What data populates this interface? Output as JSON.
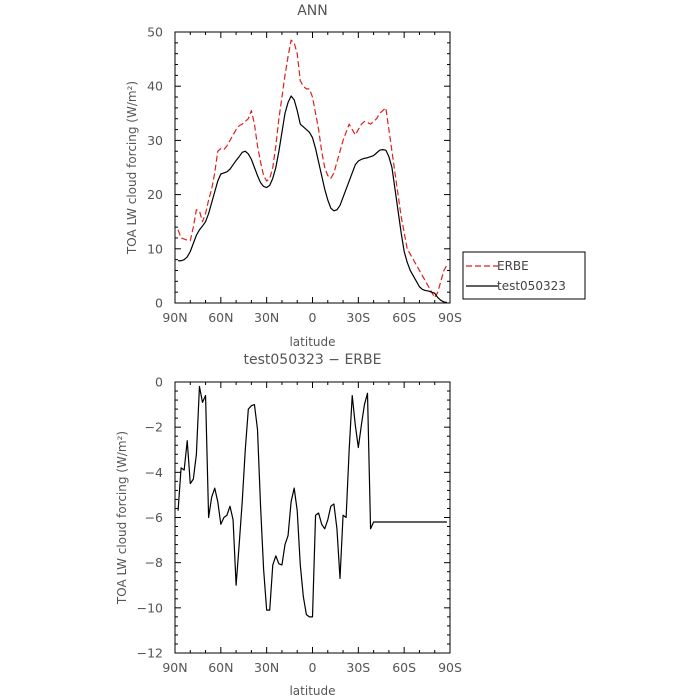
{
  "chart_data": [
    {
      "type": "line",
      "title": "ANN",
      "xlabel": "latitude",
      "ylabel": "TOA LW cloud forcing (W/m²)",
      "xlim": [
        90,
        -90
      ],
      "ylim": [
        0,
        50
      ],
      "x_ticks": [
        90,
        60,
        30,
        0,
        -30,
        -60,
        -90
      ],
      "x_tick_labels": [
        "90N",
        "60N",
        "30N",
        "0",
        "30S",
        "60S",
        "90S"
      ],
      "y_ticks": [
        0,
        10,
        20,
        30,
        40,
        50
      ],
      "y_tick_labels": [
        "0",
        "10",
        "20",
        "30",
        "40",
        "50"
      ],
      "legend": {
        "position": "right",
        "entries": [
          "ERBE",
          "test050323"
        ]
      },
      "series": [
        {
          "name": "ERBE",
          "color": "#e0201b",
          "dash": "dashed",
          "x": [
            88,
            86,
            84,
            82,
            80,
            78,
            76,
            74,
            72,
            70,
            68,
            66,
            64,
            62,
            60,
            58,
            56,
            54,
            52,
            50,
            48,
            46,
            44,
            42,
            40,
            38,
            36,
            34,
            32,
            30,
            28,
            26,
            24,
            22,
            20,
            18,
            16,
            14,
            12,
            10,
            8,
            6,
            4,
            2,
            0,
            -2,
            -4,
            -6,
            -8,
            -10,
            -12,
            -14,
            -16,
            -18,
            -20,
            -22,
            -24,
            -26,
            -28,
            -30,
            -32,
            -34,
            -36,
            -38,
            -40,
            -42,
            -44,
            -46,
            -48,
            -50,
            -52,
            -54,
            -56,
            -58,
            -60,
            -62,
            -64,
            -66,
            -68,
            -70,
            -72,
            -74,
            -76,
            -78,
            -80,
            -82,
            -84,
            -86,
            -88
          ],
          "y": [
            13.5,
            12,
            11.8,
            11.6,
            11.5,
            14,
            17.2,
            17,
            15,
            16.5,
            19,
            21,
            24,
            28,
            28.5,
            28.3,
            29,
            30,
            31,
            32,
            32.7,
            33,
            33.5,
            34,
            35.5,
            33,
            29,
            26,
            23.5,
            22.5,
            23,
            25,
            29,
            34,
            38,
            42,
            45.5,
            48.5,
            48,
            46,
            41,
            40,
            39.5,
            39.5,
            38,
            35,
            32,
            28,
            25,
            23.5,
            23,
            24,
            26,
            28,
            30,
            31.5,
            33,
            32,
            31,
            32,
            33,
            33.5,
            33.3,
            33,
            33.5,
            34,
            35,
            35.5,
            36,
            32,
            28,
            24,
            20,
            16,
            13,
            10,
            9,
            8,
            7,
            6,
            5,
            4,
            3,
            2,
            1,
            2,
            4,
            6,
            7
          ]
        },
        {
          "name": "test050323",
          "color": "#000000",
          "dash": "solid",
          "x": [
            88,
            86,
            84,
            82,
            80,
            78,
            76,
            74,
            72,
            70,
            68,
            66,
            64,
            62,
            60,
            58,
            56,
            54,
            52,
            50,
            48,
            46,
            44,
            42,
            40,
            38,
            36,
            34,
            32,
            30,
            28,
            26,
            24,
            22,
            20,
            18,
            16,
            14,
            12,
            10,
            8,
            6,
            4,
            2,
            0,
            -2,
            -4,
            -6,
            -8,
            -10,
            -12,
            -14,
            -16,
            -18,
            -20,
            -22,
            -24,
            -26,
            -28,
            -30,
            -32,
            -34,
            -36,
            -38,
            -40,
            -42,
            -44,
            -46,
            -48,
            -50,
            -52,
            -54,
            -56,
            -58,
            -60,
            -62,
            -64,
            -66,
            -68,
            -70,
            -72,
            -74,
            -76,
            -78,
            -80,
            -82,
            -84,
            -86,
            -88
          ],
          "y": [
            7.8,
            7.8,
            8,
            8.5,
            9.5,
            11,
            12.5,
            13.5,
            14.2,
            15,
            16.5,
            18.5,
            20.5,
            22.5,
            23.8,
            24,
            24.2,
            24.7,
            25.5,
            26.3,
            27,
            27.8,
            28,
            27.5,
            26.5,
            25,
            23.5,
            22.2,
            21.5,
            21.3,
            21.7,
            23,
            25,
            28,
            31.5,
            35,
            37,
            38.2,
            37.5,
            35.5,
            33,
            32.5,
            32,
            31.5,
            30.5,
            28.5,
            26,
            23.5,
            21,
            19,
            17.5,
            17,
            17.2,
            18,
            19.5,
            21,
            22.5,
            24,
            25.5,
            26.2,
            26.5,
            26.7,
            26.8,
            27,
            27.2,
            27.7,
            28.2,
            28.3,
            28.2,
            27,
            25,
            21,
            17,
            13,
            9.5,
            7.5,
            6,
            5,
            4,
            3,
            2.5,
            2.3,
            2.2,
            2,
            1.8,
            1,
            0.5,
            0.2,
            0.1
          ]
        }
      ]
    },
    {
      "type": "line",
      "title": "test050323 − ERBE",
      "xlabel": "latitude",
      "ylabel": "TOA LW cloud forcing (W/m²)",
      "xlim": [
        90,
        -90
      ],
      "ylim": [
        -12,
        0
      ],
      "x_ticks": [
        90,
        60,
        30,
        0,
        -30,
        -60,
        -90
      ],
      "x_tick_labels": [
        "90N",
        "60N",
        "30N",
        "0",
        "30S",
        "60S",
        "90S"
      ],
      "y_ticks": [
        0,
        -2,
        -4,
        -6,
        -8,
        -10,
        -12
      ],
      "y_tick_labels": [
        "0",
        "−2",
        "−4",
        "−6",
        "−8",
        "−10",
        "−12"
      ],
      "series": [
        {
          "color": "#000000",
          "dash": "solid",
          "x": [
            88,
            86,
            84,
            82,
            80,
            78,
            76,
            74,
            72,
            70,
            68,
            66,
            64,
            62,
            60,
            58,
            56,
            54,
            52,
            50,
            48,
            46,
            44,
            42,
            40,
            38,
            36,
            34,
            32,
            30,
            28,
            26,
            24,
            22,
            20,
            18,
            16,
            14,
            12,
            10,
            8,
            6,
            4,
            2,
            0,
            -2,
            -4,
            -6,
            -8,
            -10,
            -12,
            -14,
            -16,
            -18,
            -20,
            -22,
            -24,
            -26,
            -28,
            -30,
            -32,
            -34,
            -36,
            -38,
            -40,
            -42,
            -44,
            -46,
            -48,
            -50,
            -52,
            -54,
            -56,
            -58,
            -60,
            -62,
            -64,
            -66,
            -68,
            -70,
            -72,
            -74,
            -76,
            -78,
            -80,
            -82,
            -84,
            -86,
            -88
          ],
          "y": [
            -5.7,
            -3.8,
            -3.9,
            -2.6,
            -4.5,
            -4.3,
            -3.2,
            -0.2,
            -0.9,
            -0.6,
            -6,
            -5.1,
            -4.7,
            -5.3,
            -6.3,
            -6,
            -5.9,
            -5.5,
            -6.1,
            -9,
            -7.2,
            -5.3,
            -3,
            -1.2,
            -1.05,
            -1,
            -2.1,
            -5.5,
            -8.3,
            -10.1,
            -10.1,
            -8.1,
            -7.7,
            -8.05,
            -8.1,
            -7.2,
            -6.8,
            -5.3,
            -4.7,
            -5.7,
            -8.1,
            -9.5,
            -10.3,
            -10.4,
            -10.4,
            -5.9,
            -5.8,
            -6.3,
            -6.5,
            -6.1,
            -5.5,
            -5.4,
            -6.5,
            -8.7,
            -5.9,
            -6,
            -3,
            -0.6,
            -1.9,
            -2.9,
            -1.9,
            -1,
            -0.5,
            -6.5,
            -6.2,
            -6.2,
            -6.2,
            -6.2,
            -6.2,
            -6.2,
            -6.2,
            -6.2,
            -6.2,
            -6.2,
            -6.2,
            -6.2,
            -6.2,
            -6.2,
            -6.2,
            -6.2,
            -6.2,
            -6.2,
            -6.2,
            -6.2,
            -6.2,
            -6.2,
            -6.2,
            -6.2,
            -6.2
          ]
        }
      ]
    }
  ]
}
